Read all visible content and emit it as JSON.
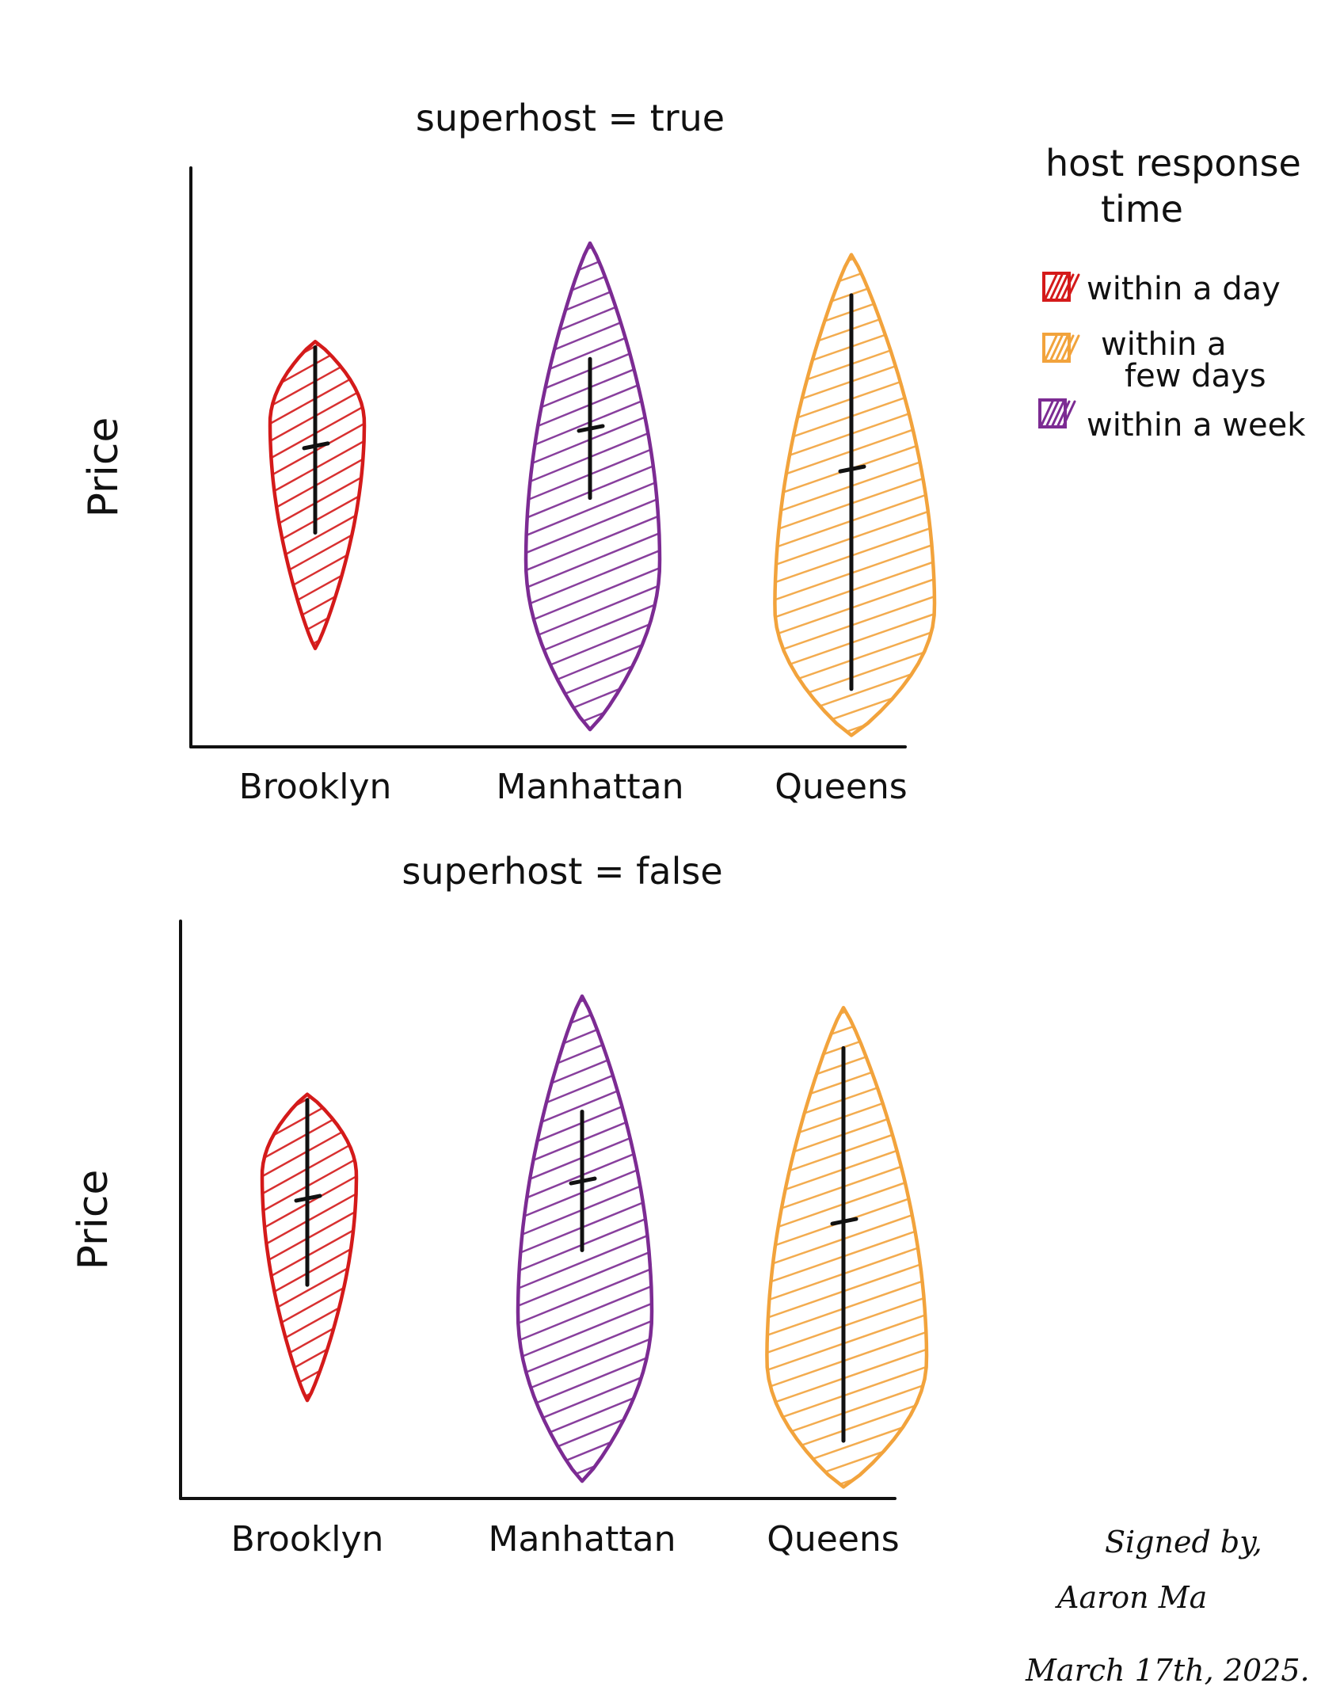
{
  "colors": {
    "within_a_day": "#d41a1a",
    "within_a_few_days": "#f2a33c",
    "within_a_week": "#7c2b93",
    "ink": "#111111"
  },
  "legend": {
    "title_line1": "host response",
    "title_line2": "time",
    "items": [
      {
        "label": "within a day",
        "color": "#d41a1a"
      },
      {
        "label_line1": "within a",
        "label_line2": "few days",
        "color": "#f2a33c"
      },
      {
        "label": "within a week",
        "color": "#7c2b93"
      }
    ]
  },
  "chart_data": [
    {
      "type": "violin",
      "title": "superhost = true",
      "ylabel": "Price",
      "xlabel": "",
      "categories": [
        "Brooklyn",
        "Manhattan",
        "Queens"
      ],
      "series_colors": [
        "within a day",
        "within a week",
        "within a few days"
      ],
      "violins": [
        {
          "category": "Brooklyn",
          "response_time": "within a day",
          "color": "#d41a1a",
          "top": 0.7,
          "bottom": 0.17,
          "widest_at": 0.56,
          "median": 0.52,
          "iqr_top": 0.69,
          "iqr_bottom": 0.37
        },
        {
          "category": "Manhattan",
          "response_time": "within a week",
          "color": "#7c2b93",
          "top": 0.87,
          "bottom": 0.03,
          "widest_at": 0.32,
          "median": 0.55,
          "iqr_top": 0.67,
          "iqr_bottom": 0.43
        },
        {
          "category": "Queens",
          "response_time": "within a few days",
          "color": "#f2a33c",
          "top": 0.85,
          "bottom": 0.02,
          "widest_at": 0.24,
          "median": 0.48,
          "iqr_top": 0.78,
          "iqr_bottom": 0.1
        }
      ]
    },
    {
      "type": "violin",
      "title": "superhost = false",
      "ylabel": "Price",
      "xlabel": "",
      "categories": [
        "Brooklyn",
        "Manhattan",
        "Queens"
      ],
      "series_colors": [
        "within a day",
        "within a week",
        "within a few days"
      ],
      "violins": [
        {
          "category": "Brooklyn",
          "response_time": "within a day",
          "color": "#d41a1a",
          "top": 0.7,
          "bottom": 0.17,
          "widest_at": 0.56,
          "median": 0.52,
          "iqr_top": 0.69,
          "iqr_bottom": 0.37
        },
        {
          "category": "Manhattan",
          "response_time": "within a week",
          "color": "#7c2b93",
          "top": 0.87,
          "bottom": 0.03,
          "widest_at": 0.32,
          "median": 0.55,
          "iqr_top": 0.67,
          "iqr_bottom": 0.43
        },
        {
          "category": "Queens",
          "response_time": "within a few days",
          "color": "#f2a33c",
          "top": 0.85,
          "bottom": 0.02,
          "widest_at": 0.24,
          "median": 0.48,
          "iqr_top": 0.78,
          "iqr_bottom": 0.1
        }
      ]
    }
  ],
  "signature": {
    "line1": "Signed by,",
    "line2": "Aaron Ma",
    "line3": "March 17th, 2025."
  }
}
